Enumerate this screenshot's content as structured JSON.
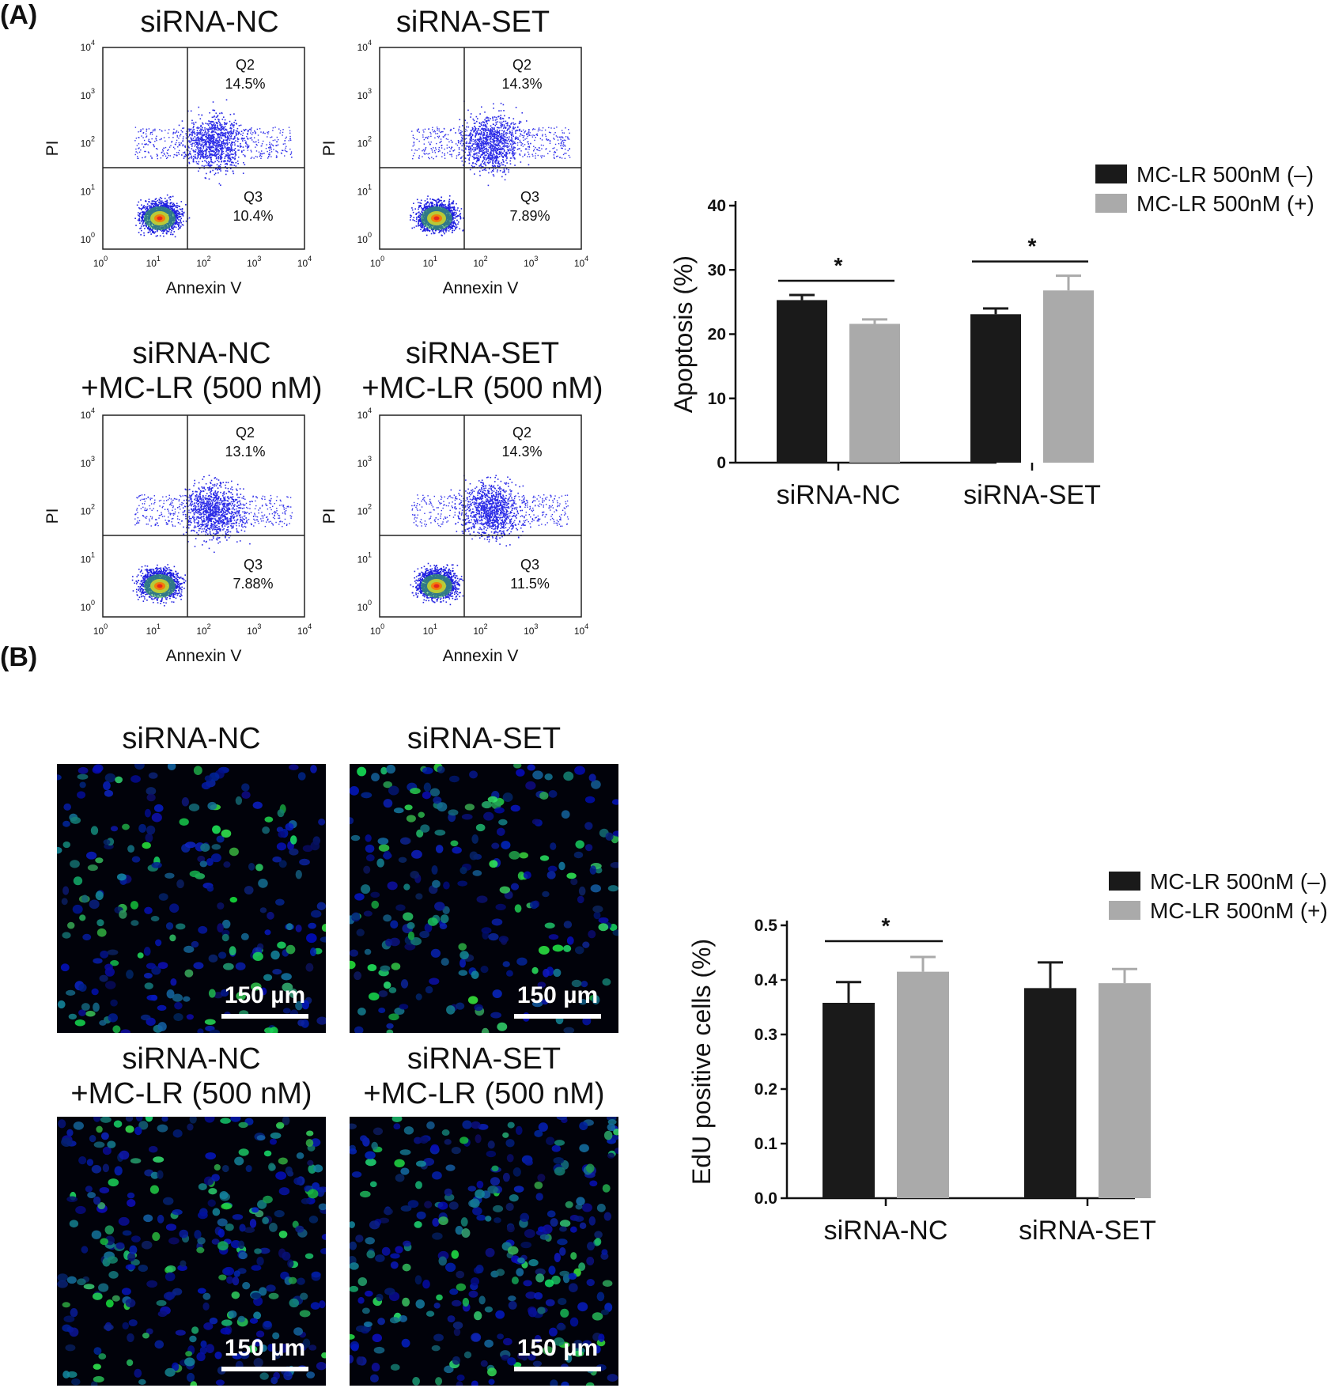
{
  "panels": {
    "A": "(A)",
    "B": "(B)"
  },
  "flow": {
    "xlabel": "Annexin V",
    "ylabel": "PI",
    "ticks": [
      "0",
      "1",
      "2",
      "3",
      "4"
    ],
    "tick_base": "10",
    "plots": [
      {
        "title": [
          "siRNA-NC"
        ],
        "q2_label": "Q2",
        "q2": "14.5%",
        "q3_label": "Q3",
        "q3": "10.4%"
      },
      {
        "title": [
          "siRNA-SET"
        ],
        "q2_label": "Q2",
        "q2": "14.3%",
        "q3_label": "Q3",
        "q3": "7.89%"
      },
      {
        "title": [
          "siRNA-NC",
          "+MC-LR (500 nM)"
        ],
        "q2_label": "Q2",
        "q2": "13.1%",
        "q3_label": "Q3",
        "q3": "7.88%"
      },
      {
        "title": [
          "siRNA-SET",
          "+MC-LR (500 nM)"
        ],
        "q2_label": "Q2",
        "q2": "14.3%",
        "q3_label": "Q3",
        "q3": "11.5%"
      }
    ]
  },
  "micrographs": {
    "scale_label": "150 µm",
    "images": [
      {
        "title": [
          "siRNA-NC"
        ]
      },
      {
        "title": [
          "siRNA-SET"
        ]
      },
      {
        "title": [
          "siRNA-NC",
          "+MC-LR (500 nM)"
        ]
      },
      {
        "title": [
          "siRNA-SET",
          "+MC-LR (500 nM)"
        ]
      }
    ]
  },
  "chart_data": [
    {
      "type": "bar",
      "categories": [
        "siRNA-NC",
        "siRNA-SET"
      ],
      "series": [
        {
          "name": "MC-LR 500nM (–)",
          "color": "#1a1a1a",
          "values": [
            25.3,
            23.1
          ],
          "errors": [
            0.8,
            0.9
          ]
        },
        {
          "name": "MC-LR 500nM (+)",
          "color": "#aaaaaa",
          "values": [
            21.6,
            26.8
          ],
          "errors": [
            0.7,
            2.3
          ]
        }
      ],
      "ylabel": "Apoptosis (%)",
      "ylim": [
        0,
        40
      ],
      "yticks": [
        "0",
        "10",
        "20",
        "30",
        "40"
      ],
      "significance": [
        "*",
        "*"
      ],
      "legend": "top-right"
    },
    {
      "type": "bar",
      "categories": [
        "siRNA-NC",
        "siRNA-SET"
      ],
      "series": [
        {
          "name": "MC-LR 500nM (–)",
          "color": "#1a1a1a",
          "values": [
            0.358,
            0.385
          ],
          "errors": [
            0.038,
            0.047
          ]
        },
        {
          "name": "MC-LR 500nM (+)",
          "color": "#aaaaaa",
          "values": [
            0.415,
            0.394
          ],
          "errors": [
            0.027,
            0.026
          ]
        }
      ],
      "ylabel": "EdU positive cells (%)",
      "ylim": [
        0,
        0.5
      ],
      "yticks": [
        "0.0",
        "0.1",
        "0.2",
        "0.3",
        "0.4",
        "0.5"
      ],
      "significance": [
        "*",
        ""
      ],
      "legend": "top-right"
    }
  ]
}
